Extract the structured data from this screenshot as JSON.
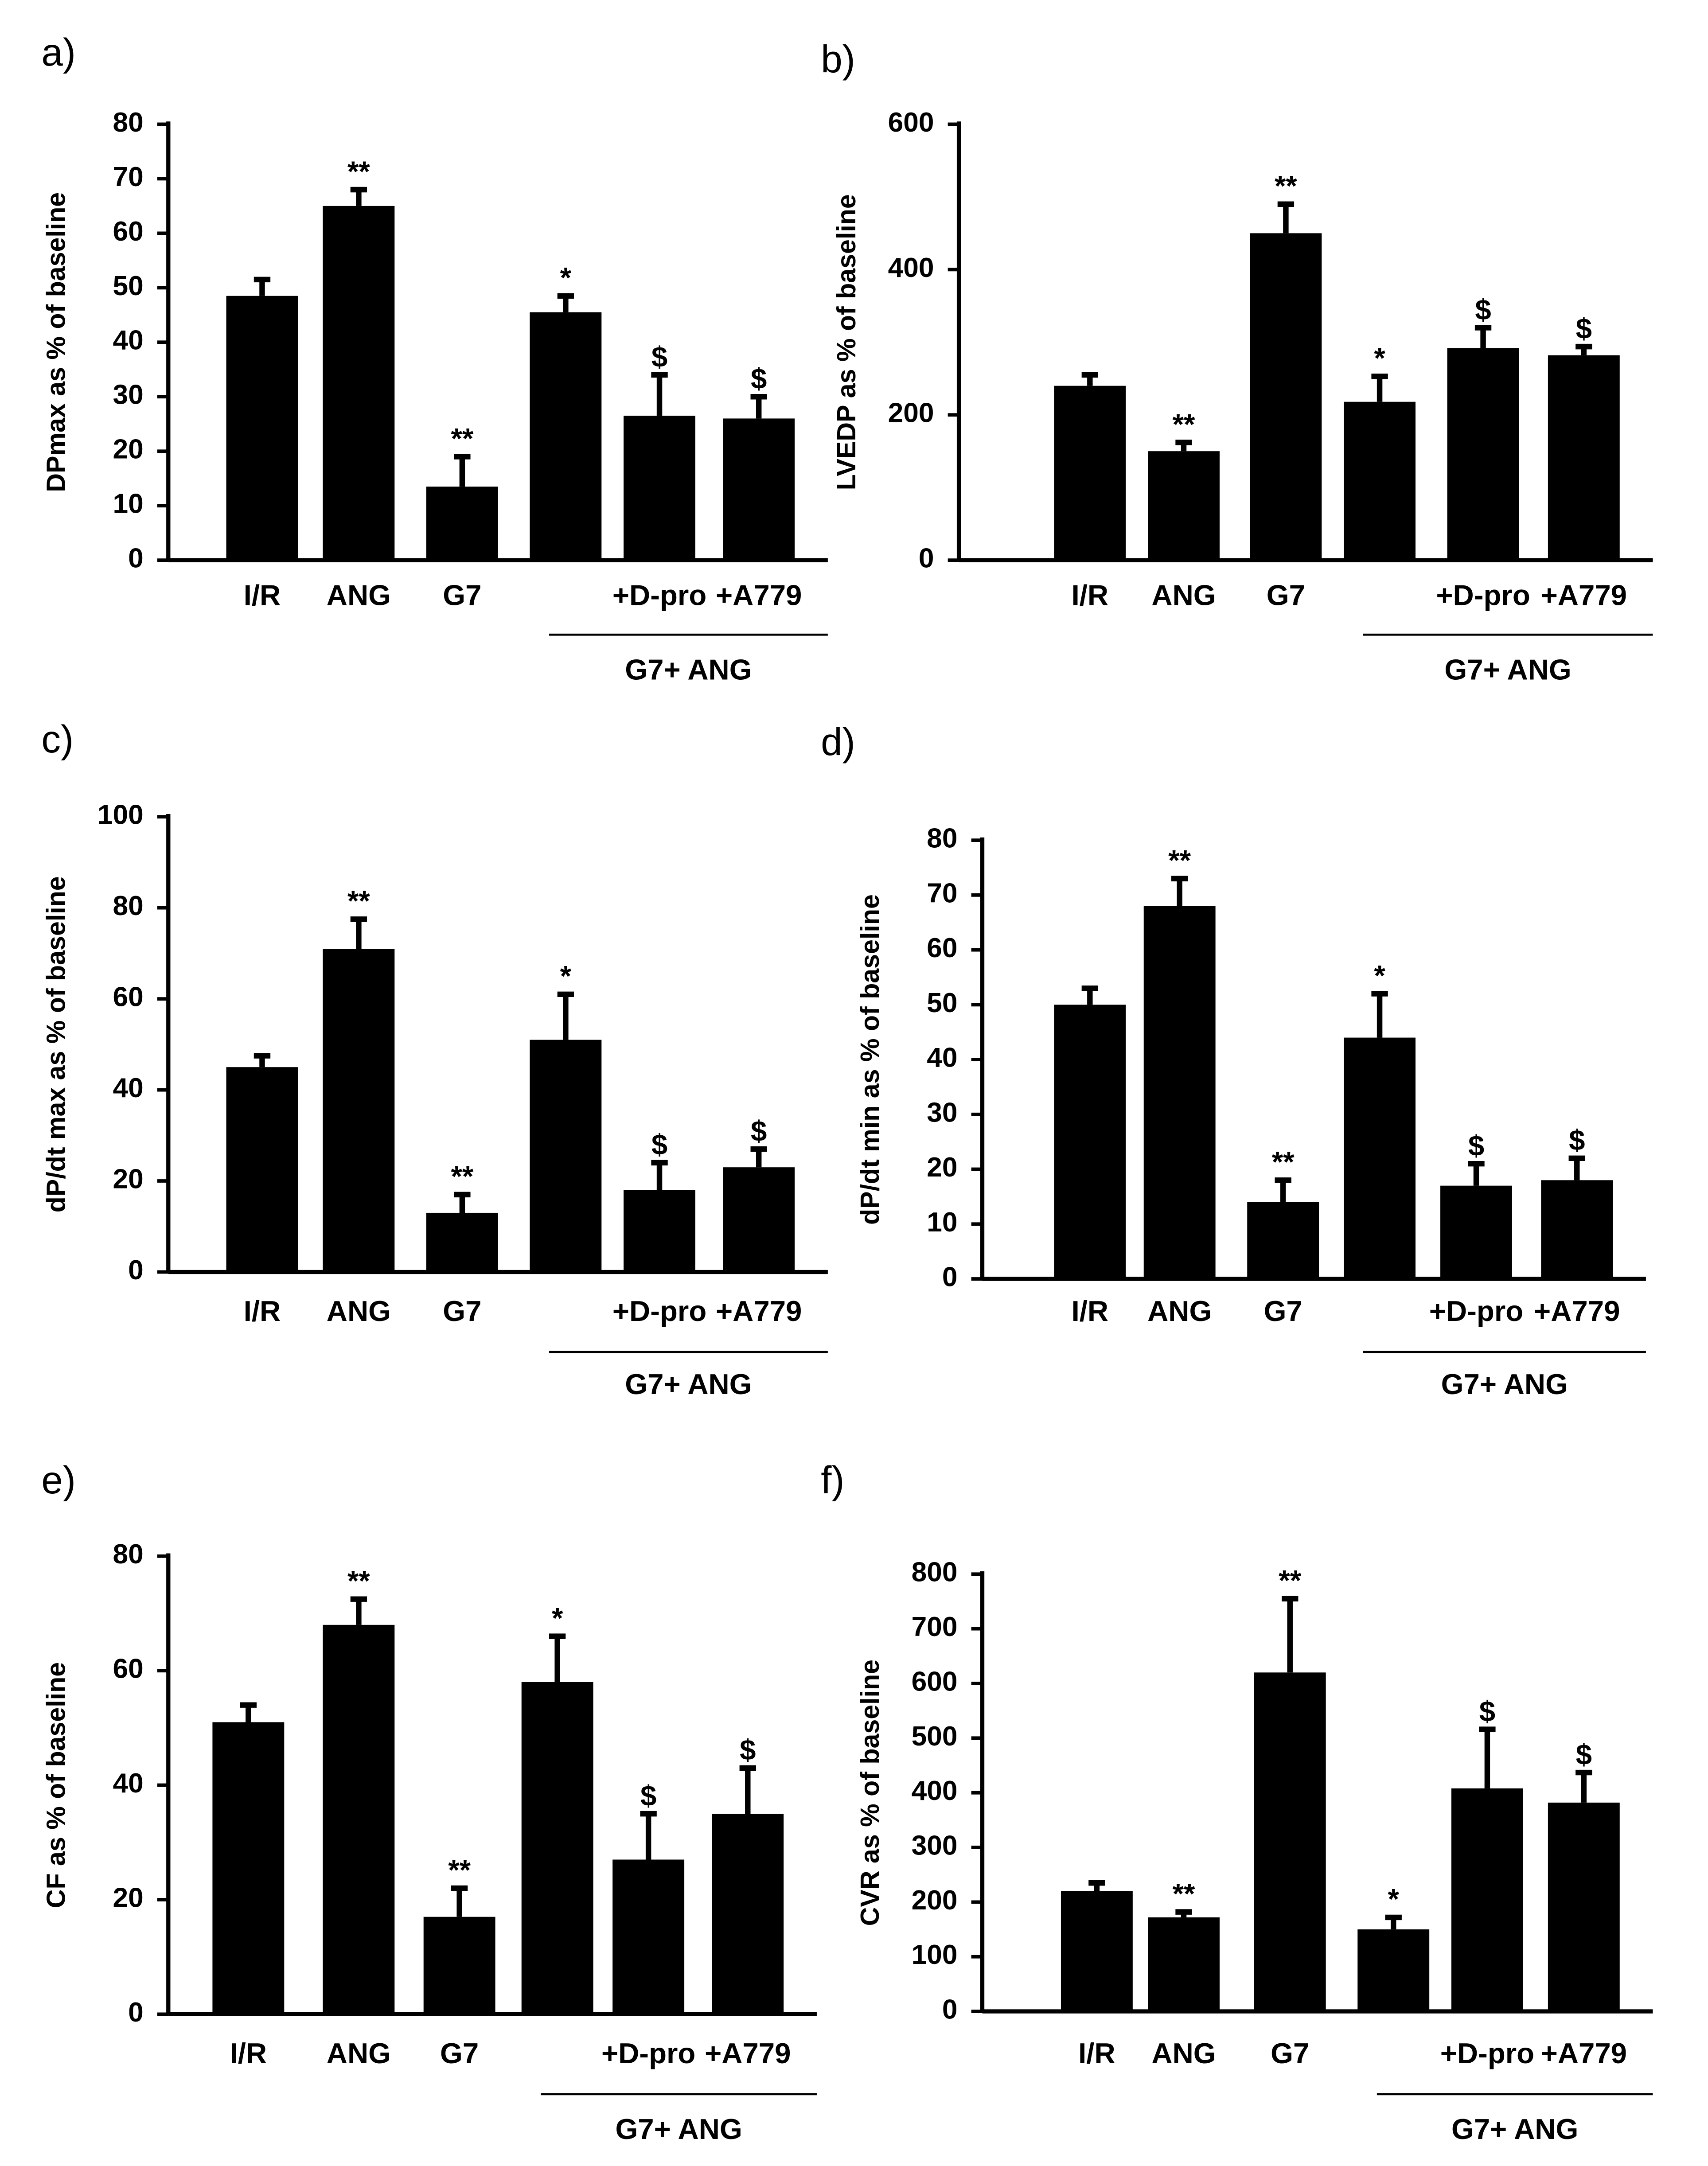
{
  "chart_data": [
    {
      "type": "bar",
      "panel_label": "a)",
      "y_label": "DPmax as % of baseline",
      "categories": [
        "I/R",
        "ANG",
        "G7",
        null,
        "+D-pro",
        "+A779"
      ],
      "group_label": "G7+ ANG",
      "values": [
        48.5,
        65,
        13.5,
        45.5,
        26.5,
        26
      ],
      "errors": [
        3,
        3,
        5.5,
        3,
        7.5,
        4
      ],
      "annotations": [
        null,
        "**",
        "**",
        "*",
        "$",
        "$"
      ],
      "ylim": [
        0,
        80
      ],
      "yticks": [
        0,
        10,
        20,
        30,
        40,
        50,
        60,
        70,
        80
      ],
      "color": "#000000"
    },
    {
      "type": "bar",
      "panel_label": "b)",
      "y_label": "LVEDP as % of baseline",
      "categories": [
        "I/R",
        "ANG",
        "G7",
        null,
        "+D-pro",
        "+A779"
      ],
      "group_label": "G7+ ANG",
      "values": [
        240,
        150,
        450,
        218,
        292,
        282
      ],
      "errors": [
        15,
        12,
        40,
        35,
        28,
        12
      ],
      "annotations": [
        null,
        "**",
        "**",
        "*",
        "$",
        "$"
      ],
      "ylim": [
        0,
        600
      ],
      "yticks": [
        0,
        200,
        400,
        600
      ],
      "color": "#000000"
    },
    {
      "type": "bar",
      "panel_label": "c)",
      "y_label": "dP/dt max as % of baseline",
      "categories": [
        "I/R",
        "ANG",
        "G7",
        null,
        "+D-pro",
        "+A779"
      ],
      "group_label": "G7+ ANG",
      "values": [
        45,
        71,
        13,
        51,
        18,
        23
      ],
      "errors": [
        2.5,
        6.5,
        4,
        10,
        6,
        4
      ],
      "annotations": [
        null,
        "**",
        "**",
        "*",
        "$",
        "$"
      ],
      "ylim": [
        0,
        100
      ],
      "yticks": [
        0,
        20,
        40,
        60,
        80,
        100
      ],
      "color": "#000000"
    },
    {
      "type": "bar",
      "panel_label": "d)",
      "y_label": "dP/dt min as % of baseline",
      "categories": [
        "I/R",
        "ANG",
        "G7",
        null,
        "+D-pro",
        "+A779"
      ],
      "group_label": "G7+ ANG",
      "values": [
        50,
        68,
        14,
        44,
        17,
        18
      ],
      "errors": [
        3,
        5,
        4,
        8,
        4,
        4
      ],
      "annotations": [
        null,
        "**",
        "**",
        "*",
        "$",
        "$"
      ],
      "ylim": [
        0,
        80
      ],
      "yticks": [
        0,
        10,
        20,
        30,
        40,
        50,
        60,
        70,
        80
      ],
      "color": "#000000"
    },
    {
      "type": "bar",
      "panel_label": "e)",
      "y_label": "CF as % of baseline",
      "categories": [
        "I/R",
        "ANG",
        "G7",
        null,
        "+D-pro",
        "+A779"
      ],
      "group_label": "G7+ ANG",
      "values": [
        51,
        68,
        17,
        58,
        27,
        35
      ],
      "errors": [
        3,
        4.5,
        5,
        8,
        8,
        8
      ],
      "annotations": [
        null,
        "**",
        "**",
        "*",
        "$",
        "$"
      ],
      "ylim": [
        0,
        80
      ],
      "yticks": [
        0,
        20,
        40,
        60,
        80
      ],
      "color": "#000000"
    },
    {
      "type": "bar",
      "panel_label": "f)",
      "y_label": "CVR as % of baseline",
      "categories": [
        "I/R",
        "ANG",
        "G7",
        null,
        "+D-pro",
        "+A779"
      ],
      "group_label": "G7+ ANG",
      "values": [
        220,
        172,
        620,
        150,
        408,
        382
      ],
      "errors": [
        15,
        10,
        135,
        22,
        108,
        55
      ],
      "annotations": [
        null,
        "**",
        "**",
        "*",
        "$",
        "$"
      ],
      "ylim": [
        0,
        800
      ],
      "yticks": [
        0,
        100,
        200,
        300,
        400,
        500,
        600,
        700,
        800
      ],
      "color": "#000000"
    }
  ]
}
